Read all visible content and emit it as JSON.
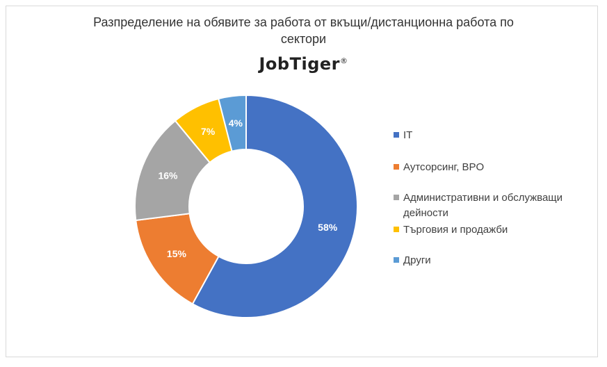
{
  "chart_data": {
    "type": "pie",
    "title_lines": [
      "Разпределение на обявите за работа от вкъщи/дистанционна работа по",
      "сектори"
    ],
    "brand": "JobTiger",
    "brand_mark": "®",
    "categories": [
      "IT",
      "Аутсорсинг, BPO",
      "Административни и обслужващи дейности",
      "Търговия и продажби",
      "Други"
    ],
    "legend_lines": [
      [
        "IT"
      ],
      [
        "Аутсорсинг, BPO"
      ],
      [
        "Административни и обслужващи",
        "дейности"
      ],
      [
        "Търговия и продажби"
      ],
      [
        "Други"
      ]
    ],
    "values": [
      58,
      15,
      16,
      7,
      4
    ],
    "labels": [
      "58%",
      "15%",
      "16%",
      "7%",
      "4%"
    ],
    "colors": [
      "#4472c4",
      "#ed7d31",
      "#a5a5a5",
      "#ffc000",
      "#5b9bd5"
    ],
    "donut": true,
    "legend_position": "right"
  }
}
